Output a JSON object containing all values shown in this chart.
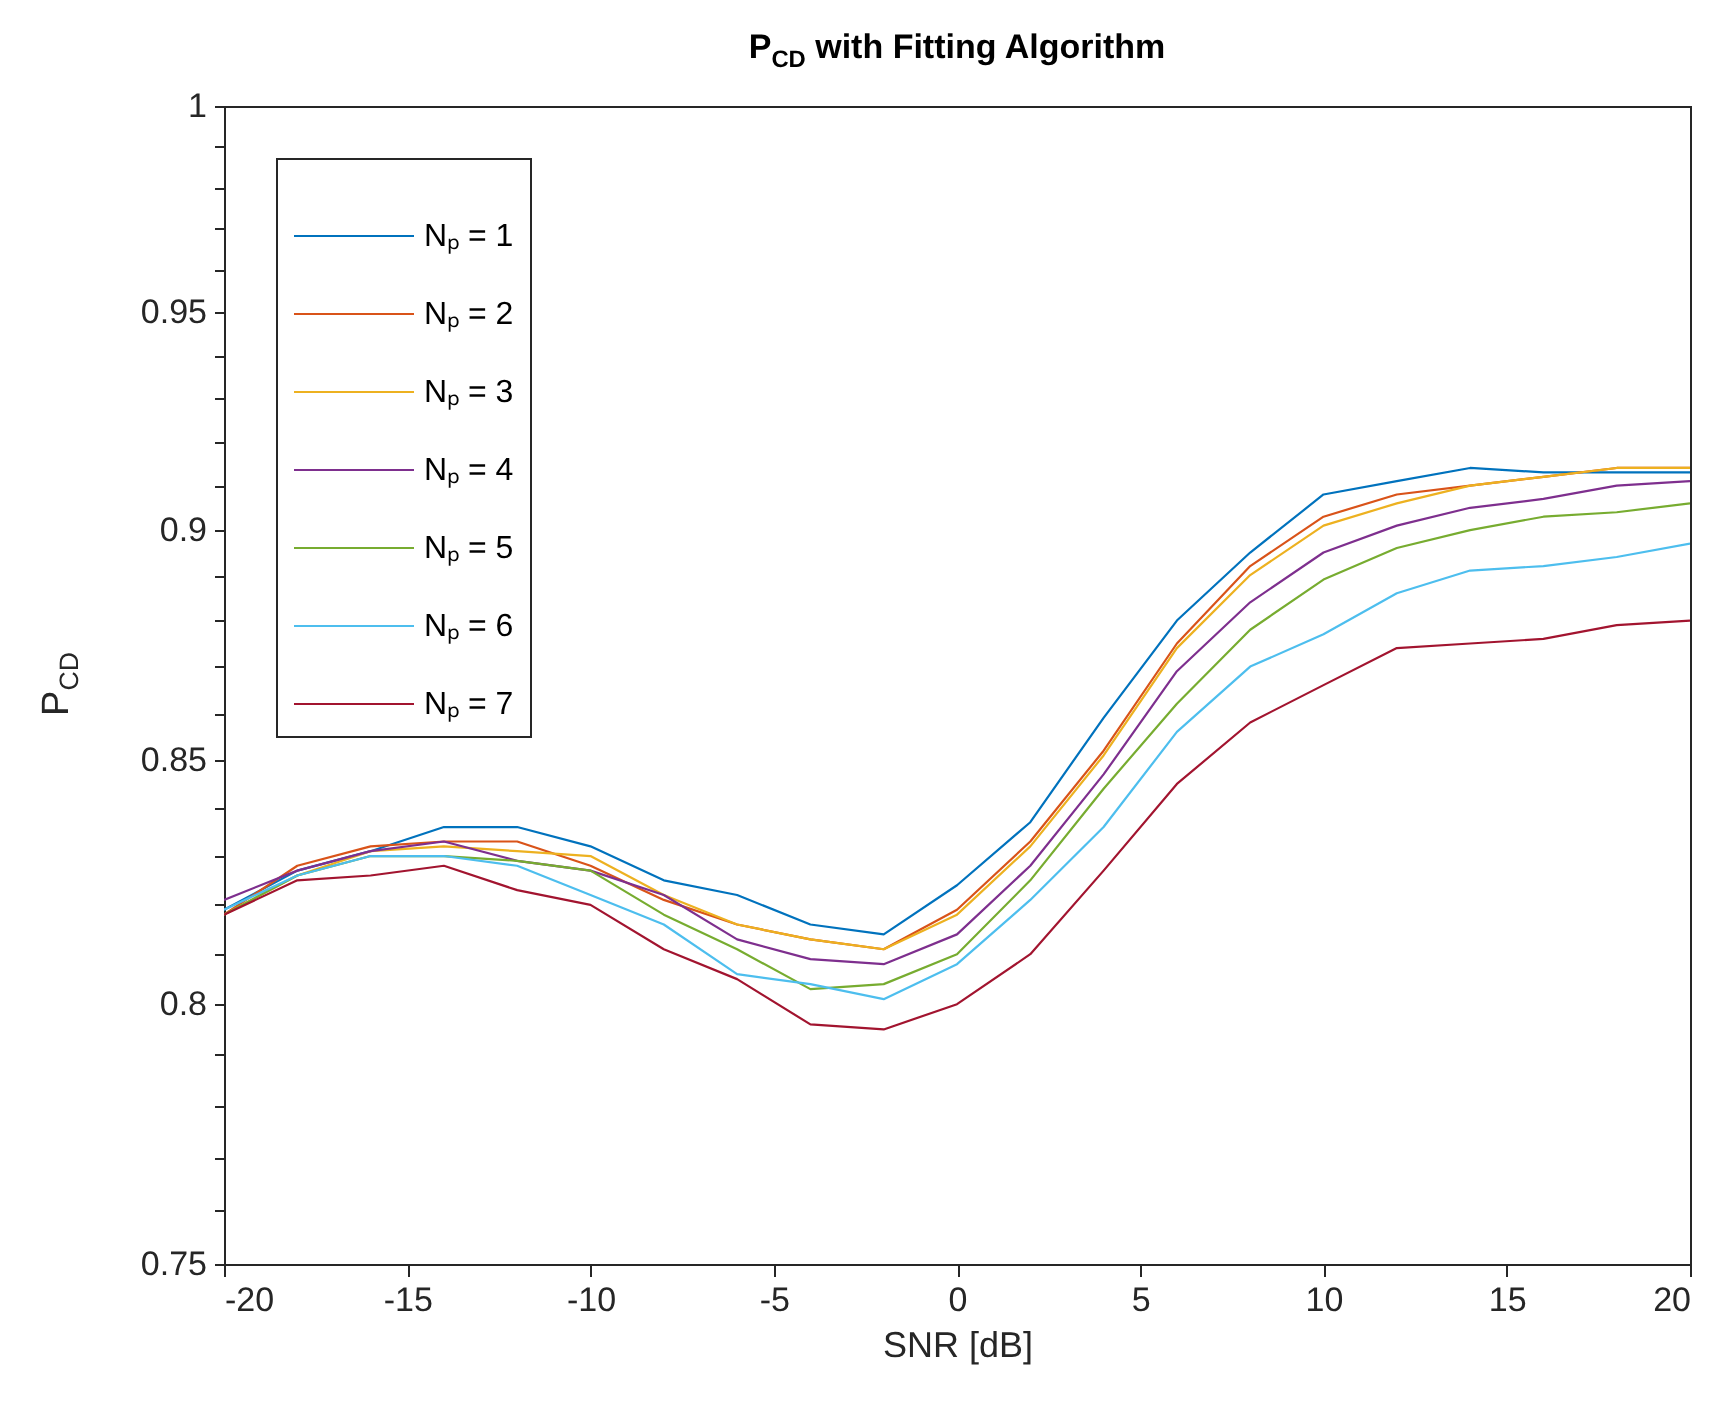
{
  "chart_data": {
    "type": "line",
    "title": "P$_{CD}$ with Fitting Algorithm",
    "xlabel": "SNR [dB]",
    "ylabel": "P$_{CD}$",
    "x": [
      -20,
      -18,
      -16,
      -14,
      -12,
      -10,
      -8,
      -6,
      -4,
      -2,
      0,
      2,
      4,
      6,
      8,
      10,
      12,
      14,
      16,
      18,
      20
    ],
    "series": [
      {
        "name": "Nₚ = 1",
        "color": "#0072bd",
        "values": [
          0.819,
          0.827,
          0.831,
          0.836,
          0.836,
          0.832,
          0.825,
          0.822,
          0.816,
          0.814,
          0.824,
          0.837,
          0.859,
          0.88,
          0.895,
          0.908,
          0.911,
          0.914,
          0.913,
          0.913,
          0.913
        ]
      },
      {
        "name": "Nₚ = 2",
        "color": "#d95319",
        "values": [
          0.818,
          0.828,
          0.832,
          0.833,
          0.833,
          0.828,
          0.821,
          0.816,
          0.813,
          0.811,
          0.819,
          0.833,
          0.852,
          0.875,
          0.892,
          0.903,
          0.908,
          0.91,
          0.912,
          0.914,
          0.914
        ]
      },
      {
        "name": "Nₚ = 3",
        "color": "#edb120",
        "values": [
          0.818,
          0.826,
          0.831,
          0.832,
          0.831,
          0.83,
          0.822,
          0.816,
          0.813,
          0.811,
          0.818,
          0.832,
          0.851,
          0.874,
          0.89,
          0.901,
          0.906,
          0.91,
          0.912,
          0.914,
          0.914
        ]
      },
      {
        "name": "Nₚ = 4",
        "color": "#7e2f8e",
        "values": [
          0.821,
          0.827,
          0.831,
          0.833,
          0.829,
          0.827,
          0.822,
          0.813,
          0.809,
          0.808,
          0.814,
          0.828,
          0.847,
          0.869,
          0.884,
          0.895,
          0.901,
          0.905,
          0.907,
          0.91,
          0.911
        ]
      },
      {
        "name": "Nₚ = 5",
        "color": "#77ac30",
        "values": [
          0.818,
          0.826,
          0.83,
          0.83,
          0.829,
          0.827,
          0.818,
          0.811,
          0.803,
          0.804,
          0.81,
          0.825,
          0.844,
          0.862,
          0.878,
          0.889,
          0.896,
          0.9,
          0.903,
          0.904,
          0.906
        ]
      },
      {
        "name": "Nₚ = 6",
        "color": "#4dbeee",
        "values": [
          0.819,
          0.826,
          0.83,
          0.83,
          0.828,
          0.822,
          0.816,
          0.806,
          0.804,
          0.801,
          0.808,
          0.821,
          0.836,
          0.856,
          0.87,
          0.877,
          0.886,
          0.891,
          0.892,
          0.894,
          0.897
        ]
      },
      {
        "name": "Nₚ = 7",
        "color": "#a2142f",
        "values": [
          0.818,
          0.825,
          0.826,
          0.828,
          0.823,
          0.82,
          0.811,
          0.805,
          0.796,
          0.795,
          0.8,
          0.81,
          0.827,
          0.845,
          0.858,
          0.866,
          0.874,
          0.875,
          0.876,
          0.879,
          0.88
        ]
      }
    ],
    "xlim": [
      -20,
      20
    ],
    "xticks": [
      -20,
      -15,
      -10,
      -5,
      0,
      5,
      10,
      15,
      20
    ],
    "ylim": [
      0.75,
      1
    ],
    "log": "y",
    "yticks": [
      0.75,
      {
        "value": 0.76,
        "label": null
      },
      {
        "value": 0.77,
        "label": null
      },
      {
        "value": 0.78,
        "label": null
      },
      {
        "value": 0.79,
        "label": null
      },
      0.8,
      {
        "value": 0.81,
        "label": null
      },
      {
        "value": 0.82,
        "label": null
      },
      {
        "value": 0.83,
        "label": null
      },
      {
        "value": 0.84,
        "label": null
      },
      0.85,
      {
        "value": 0.86,
        "label": null
      },
      {
        "value": 0.87,
        "label": null
      },
      {
        "value": 0.88,
        "label": null
      },
      {
        "value": 0.89,
        "label": null
      },
      0.9,
      {
        "value": 0.91,
        "label": null
      },
      {
        "value": 0.92,
        "label": null
      },
      {
        "value": 0.93,
        "label": null
      },
      {
        "value": 0.94,
        "label": null
      },
      0.95,
      {
        "value": 0.96,
        "label": null
      },
      {
        "value": 0.97,
        "label": null
      },
      {
        "value": 0.98,
        "label": null
      },
      {
        "value": 0.99,
        "label": null
      },
      1
    ],
    "legend": "top left",
    "line_style": "solid",
    "marker": "none"
  }
}
